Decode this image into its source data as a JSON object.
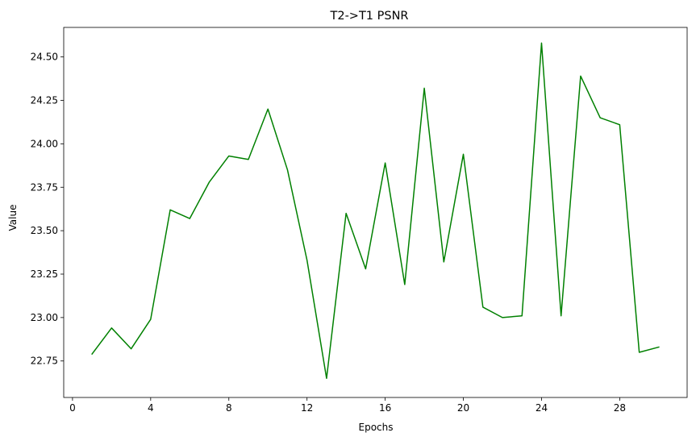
{
  "chart_data": {
    "type": "line",
    "title": "T2->T1 PSNR",
    "xlabel": "Epochs",
    "ylabel": "Value",
    "xlim": [
      -0.45,
      31.45
    ],
    "ylim": [
      22.54,
      24.67
    ],
    "xticks": [
      0,
      4,
      8,
      12,
      16,
      20,
      24,
      28
    ],
    "yticks": [
      22.75,
      23.0,
      23.25,
      23.5,
      23.75,
      24.0,
      24.25,
      24.5
    ],
    "ytick_labels": [
      "22.75",
      "23.00",
      "23.25",
      "23.50",
      "23.75",
      "24.00",
      "24.25",
      "24.50"
    ],
    "grid": false,
    "series": [
      {
        "color": "#008000",
        "x": [
          1,
          2,
          3,
          4,
          5,
          6,
          7,
          8,
          9,
          10,
          11,
          12,
          13,
          14,
          15,
          16,
          17,
          18,
          19,
          20,
          21,
          22,
          23,
          24,
          25,
          26,
          27,
          28,
          29,
          30
        ],
        "values": [
          22.79,
          22.94,
          22.82,
          22.99,
          23.62,
          23.57,
          23.78,
          23.93,
          23.91,
          24.2,
          23.85,
          23.33,
          22.65,
          23.6,
          23.28,
          23.89,
          23.19,
          24.32,
          23.32,
          23.94,
          23.06,
          23.0,
          23.01,
          24.58,
          23.01,
          24.39,
          24.15,
          24.11,
          22.8,
          22.83
        ]
      }
    ]
  }
}
